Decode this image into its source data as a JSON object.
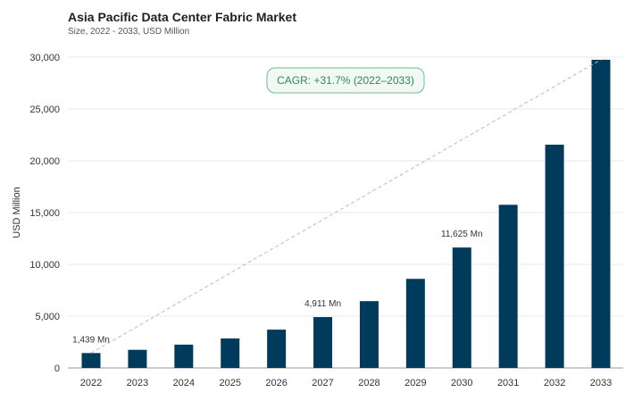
{
  "chart_data": {
    "type": "bar",
    "title": "Asia Pacific Data Center Fabric Market",
    "subtitle": "Size, 2022 - 2033, USD Million",
    "ylabel": "USD Million",
    "xlabel": "",
    "categories": [
      "2022",
      "2023",
      "2024",
      "2025",
      "2026",
      "2027",
      "2028",
      "2029",
      "2030",
      "2031",
      "2032",
      "2033"
    ],
    "values": [
      1439,
      1750,
      2250,
      2850,
      3700,
      4911,
      6450,
      8600,
      11625,
      15750,
      21550,
      29750
    ],
    "ylim": [
      0,
      30000
    ],
    "yticks": [
      "0",
      "5,000",
      "10,000",
      "15,000",
      "20,000",
      "25,000",
      "30,000"
    ],
    "ytick_values": [
      0,
      5000,
      10000,
      15000,
      20000,
      25000,
      30000
    ],
    "data_labels": [
      {
        "index": 0,
        "text": "1,439 Mn"
      },
      {
        "index": 5,
        "text": "4,911 Mn"
      },
      {
        "index": 8,
        "text": "11,625 Mn"
      }
    ],
    "annotation": "CAGR: +31.7% (2022–2033)",
    "grid": true,
    "bar_color": "#003b5c",
    "trend_line_color": "#bbbbbb",
    "annotation_color": "#2e8b57"
  }
}
